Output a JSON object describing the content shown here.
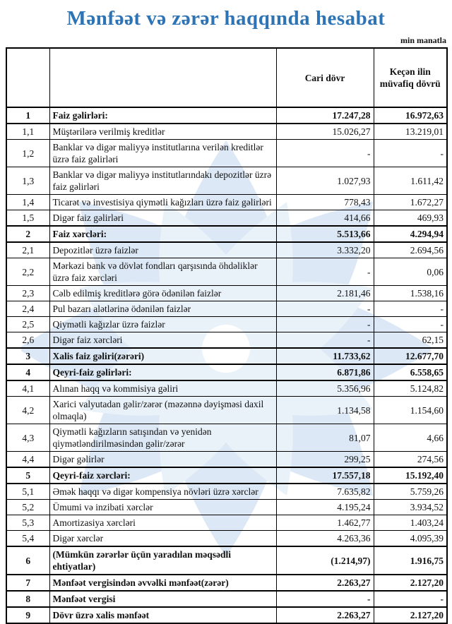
{
  "page": {
    "title": "Mənfəət və zərər haqqında hesabat",
    "unit_note": "min manatla"
  },
  "colors": {
    "title_blue": "#2E74B5",
    "value_cell_fill": "#9CC2E5",
    "watermark_blue": "#DCE8F5",
    "watermark_blue_light": "#E9F1F9",
    "border_black": "#000000"
  },
  "icons": {
    "watermark": "flower-petal-logo-watermark"
  },
  "table": {
    "columns": {
      "number": "",
      "label": "",
      "current": "Cari dövr",
      "previous": "Keçən ilin müvafiq dövrü"
    },
    "rows": [
      {
        "num": "1",
        "label": "Faiz gəlirləri:",
        "current": "17.247,28",
        "previous": "16.972,63",
        "section": true
      },
      {
        "num": "1,1",
        "label": "Müştərilərə verilmiş kreditlər",
        "current": "15.026,27",
        "previous": "13.219,01",
        "section": false
      },
      {
        "num": "1,2",
        "label": "Banklar və digər maliyyə institutlarına verilən kreditlər üzrə faiz gəlirləri",
        "current": "-",
        "previous": "-",
        "section": false
      },
      {
        "num": "1,3",
        "label": "Banklar və digər maliyyə institutlarındakı depozitlər üzrə faiz gəlirləri",
        "current": "1.027,93",
        "previous": "1.611,42",
        "section": false
      },
      {
        "num": "1,4",
        "label": "Ticarət və investisiya qiymətli kağızları üzrə faiz gəlirləri",
        "current": "778,43",
        "previous": "1.672,27",
        "section": false
      },
      {
        "num": "1,5",
        "label": "Digər faiz gəlirləri",
        "current": "414,66",
        "previous": "469,93",
        "section": false
      },
      {
        "num": "2",
        "label": "Faiz xərcləri:",
        "current": "5.513,66",
        "previous": "4.294,94",
        "section": true
      },
      {
        "num": "2,1",
        "label": "Depozitlər üzrə faizlər",
        "current": "3.332,20",
        "previous": "2.694,56",
        "section": false
      },
      {
        "num": "2,2",
        "label": "Mərkəzi bank və dövlət fondları qarşısında öhdəliklər üzrə faiz xərcləri",
        "current": "-",
        "previous": "0,06",
        "section": false
      },
      {
        "num": "2,3",
        "label": "Cəlb edilmiş kreditlərə görə ödənilən faizlər",
        "current": "2.181,46",
        "previous": "1.538,16",
        "section": false
      },
      {
        "num": "2,4",
        "label": "Pul bazarı alətlərinə ödənilən faizlər",
        "current": "-",
        "previous": "-",
        "section": false
      },
      {
        "num": "2,5",
        "label": "Qiymətli kağızlar üzrə faizlər",
        "current": "-",
        "previous": "-",
        "section": false
      },
      {
        "num": "2,6",
        "label": "Digər faiz xərcləri",
        "current": "-",
        "previous": "62,15",
        "section": false
      },
      {
        "num": "3",
        "label": "Xalis faiz gəliri(zərəri)",
        "current": "11.733,62",
        "previous": "12.677,70",
        "section": true
      },
      {
        "num": "4",
        "label": "Qeyri-faiz gəlirləri:",
        "current": "6.871,86",
        "previous": "6.558,65",
        "section": true
      },
      {
        "num": "4,1",
        "label": "Alınan haqq və kommisiya gəliri",
        "current": "5.356,96",
        "previous": "5.124,82",
        "section": false
      },
      {
        "num": "4,2",
        "label": "Xarici valyutadan gəlir/zərər (məzənnə dəyişməsi daxil olmaqla)",
        "current": "1.134,58",
        "previous": "1.154,60",
        "section": false
      },
      {
        "num": "4,3",
        "label": "Qiymətli kağızların satışından və yenidən qiymətləndirilməsindən gəlir/zərər",
        "current": "81,07",
        "previous": "4,66",
        "section": false
      },
      {
        "num": "4,4",
        "label": "Digər gəlirlər",
        "current": "299,25",
        "previous": "274,56",
        "section": false
      },
      {
        "num": "5",
        "label": "Qeyri-faiz xərcləri:",
        "current": "17.557,18",
        "previous": "15.192,40",
        "section": true
      },
      {
        "num": "5,1",
        "label": "Əmək haqqı və digər kompensiya növləri üzrə xərclər",
        "current": "7.635,82",
        "previous": "5.759,26",
        "section": false
      },
      {
        "num": "5,2",
        "label": "Ümumi və inzibati xərclər",
        "current": "4.195,24",
        "previous": "3.934,52",
        "section": false
      },
      {
        "num": "5,3",
        "label": "Amortizasiya xərcləri",
        "current": "1.462,77",
        "previous": "1.403,24",
        "section": false
      },
      {
        "num": "5,4",
        "label": "Digər xərclər",
        "current": "4.263,36",
        "previous": "4.095,39",
        "section": false
      },
      {
        "num": "6",
        "label": "(Mümkün zərərlər üçün yaradılan məqsədli ehtiyatlar)",
        "current": "(1.214,97)",
        "previous": "1.916,75",
        "section": true
      },
      {
        "num": "7",
        "label": "Mənfəət vergisindən əvvəlki mənfəət(zərər)",
        "current": "2.263,27",
        "previous": "2.127,20",
        "section": true
      },
      {
        "num": "8",
        "label": "Mənfəət vergisi",
        "current": "-",
        "previous": "-",
        "section": true
      },
      {
        "num": "9",
        "label": "Dövr üzrə xalis mənfəət",
        "current": "2.263,27",
        "previous": "2.127,20",
        "section": true
      }
    ]
  }
}
